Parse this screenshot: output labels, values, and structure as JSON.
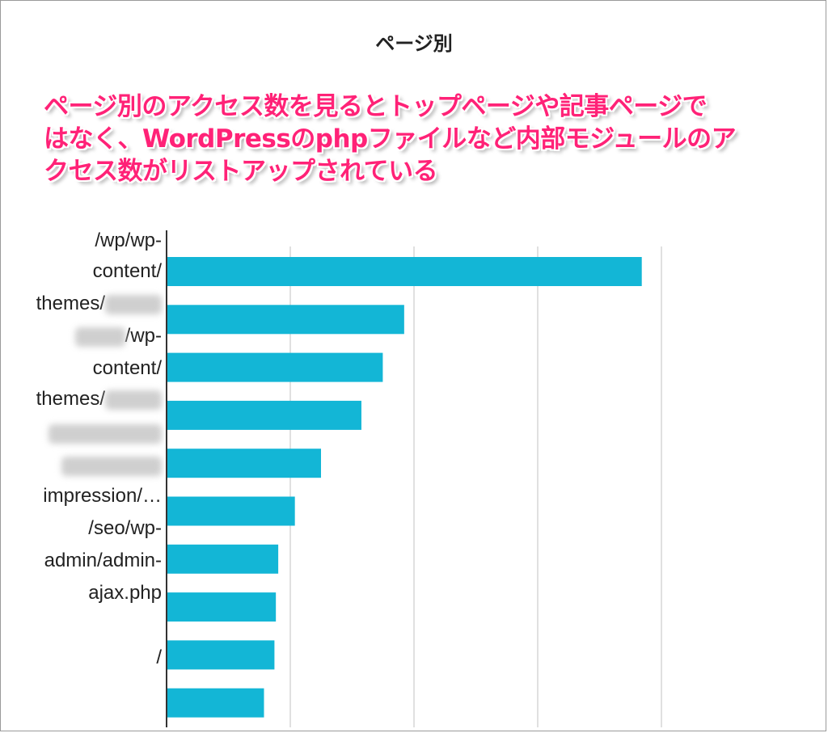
{
  "chart_data": {
    "type": "bar",
    "orientation": "horizontal",
    "title": "ページ別",
    "annotation": [
      "ページ別のアクセス数を見るとトップページや記事ページで",
      "はなく、WordPressのphpファイルなど内部モジュールのア",
      "クセス数がリストアップされている"
    ],
    "y_axis_text": [
      {
        "text": "/wp/wp-",
        "blurred_suffix": false
      },
      {
        "text": "content/",
        "blurred_suffix": false
      },
      {
        "text": "themes/",
        "blurred_suffix": true
      },
      {
        "text": "/wp-",
        "blurred_prefix": true
      },
      {
        "text": "content/",
        "blurred_suffix": false
      },
      {
        "text": "themes/",
        "blurred_suffix": true
      },
      {
        "text": "",
        "blurred_whole": true
      },
      {
        "text": "",
        "blurred_whole": true
      },
      {
        "text": "impression/…",
        "blurred_suffix": false
      },
      {
        "text": "/seo/wp-",
        "blurred_suffix": false
      },
      {
        "text": "admin/admin-",
        "blurred_suffix": false
      },
      {
        "text": "ajax.php",
        "blurred_suffix": false
      },
      {
        "text": "/",
        "blurred_suffix": false
      }
    ],
    "values": [
      100,
      50,
      45.5,
      41,
      32.5,
      27,
      23.5,
      23,
      22.7,
      20.5
    ],
    "xlim": [
      0,
      130
    ],
    "grid": true,
    "bar_color": "#13b6d6",
    "grid_color": "#e0e0e0",
    "axis_color": "#333333"
  }
}
